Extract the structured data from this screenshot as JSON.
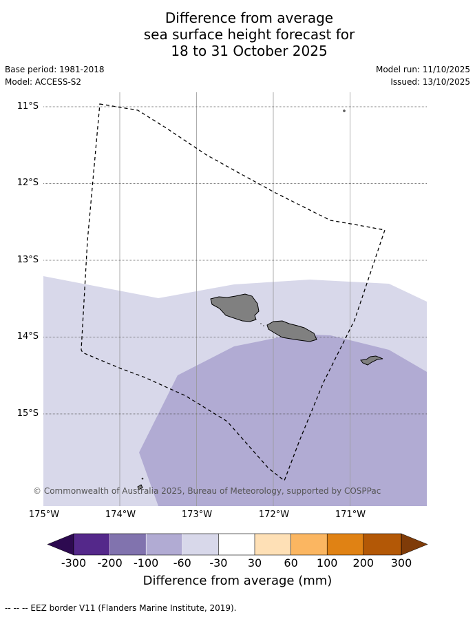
{
  "title": {
    "line1": "Difference from average",
    "line2": "sea surface height forecast for",
    "line3": "18 to 31 October 2025"
  },
  "meta": {
    "base_period": "Base period: 1981-2018",
    "model": "Model: ACCESS-S2",
    "model_run": "Model run: 11/10/2025",
    "issued": "Issued: 13/10/2025"
  },
  "map": {
    "lat_ticks": [
      "11°S",
      "12°S",
      "13°S",
      "14°S",
      "15°S"
    ],
    "lon_ticks": [
      "175°W",
      "174°W",
      "173°W",
      "172°W",
      "171°W"
    ],
    "copyright": "© Commonwealth of Australia 2025, Bureau of Meteorology, supported by COSPPac",
    "region_colors": {
      "-60_to_-30": "#d8d8ea",
      "-100_to_-60": "#b1abd3"
    },
    "land_color": "#808080"
  },
  "colorbar": {
    "labels": [
      "-300",
      "-200",
      "-100",
      "-60",
      "-30",
      "30",
      "60",
      "100",
      "200",
      "300"
    ],
    "colors": [
      "#2d0a50",
      "#54288a",
      "#8173ae",
      "#b1abd3",
      "#d8d8ea",
      "#ffffff",
      "#fee0b6",
      "#fbb661",
      "#e08214",
      "#b35806",
      "#7f3b08"
    ],
    "title": "Difference from average (mm)"
  },
  "footer": "--  --  -- EEZ border V11 (Flanders Marine Institute, 2019)."
}
